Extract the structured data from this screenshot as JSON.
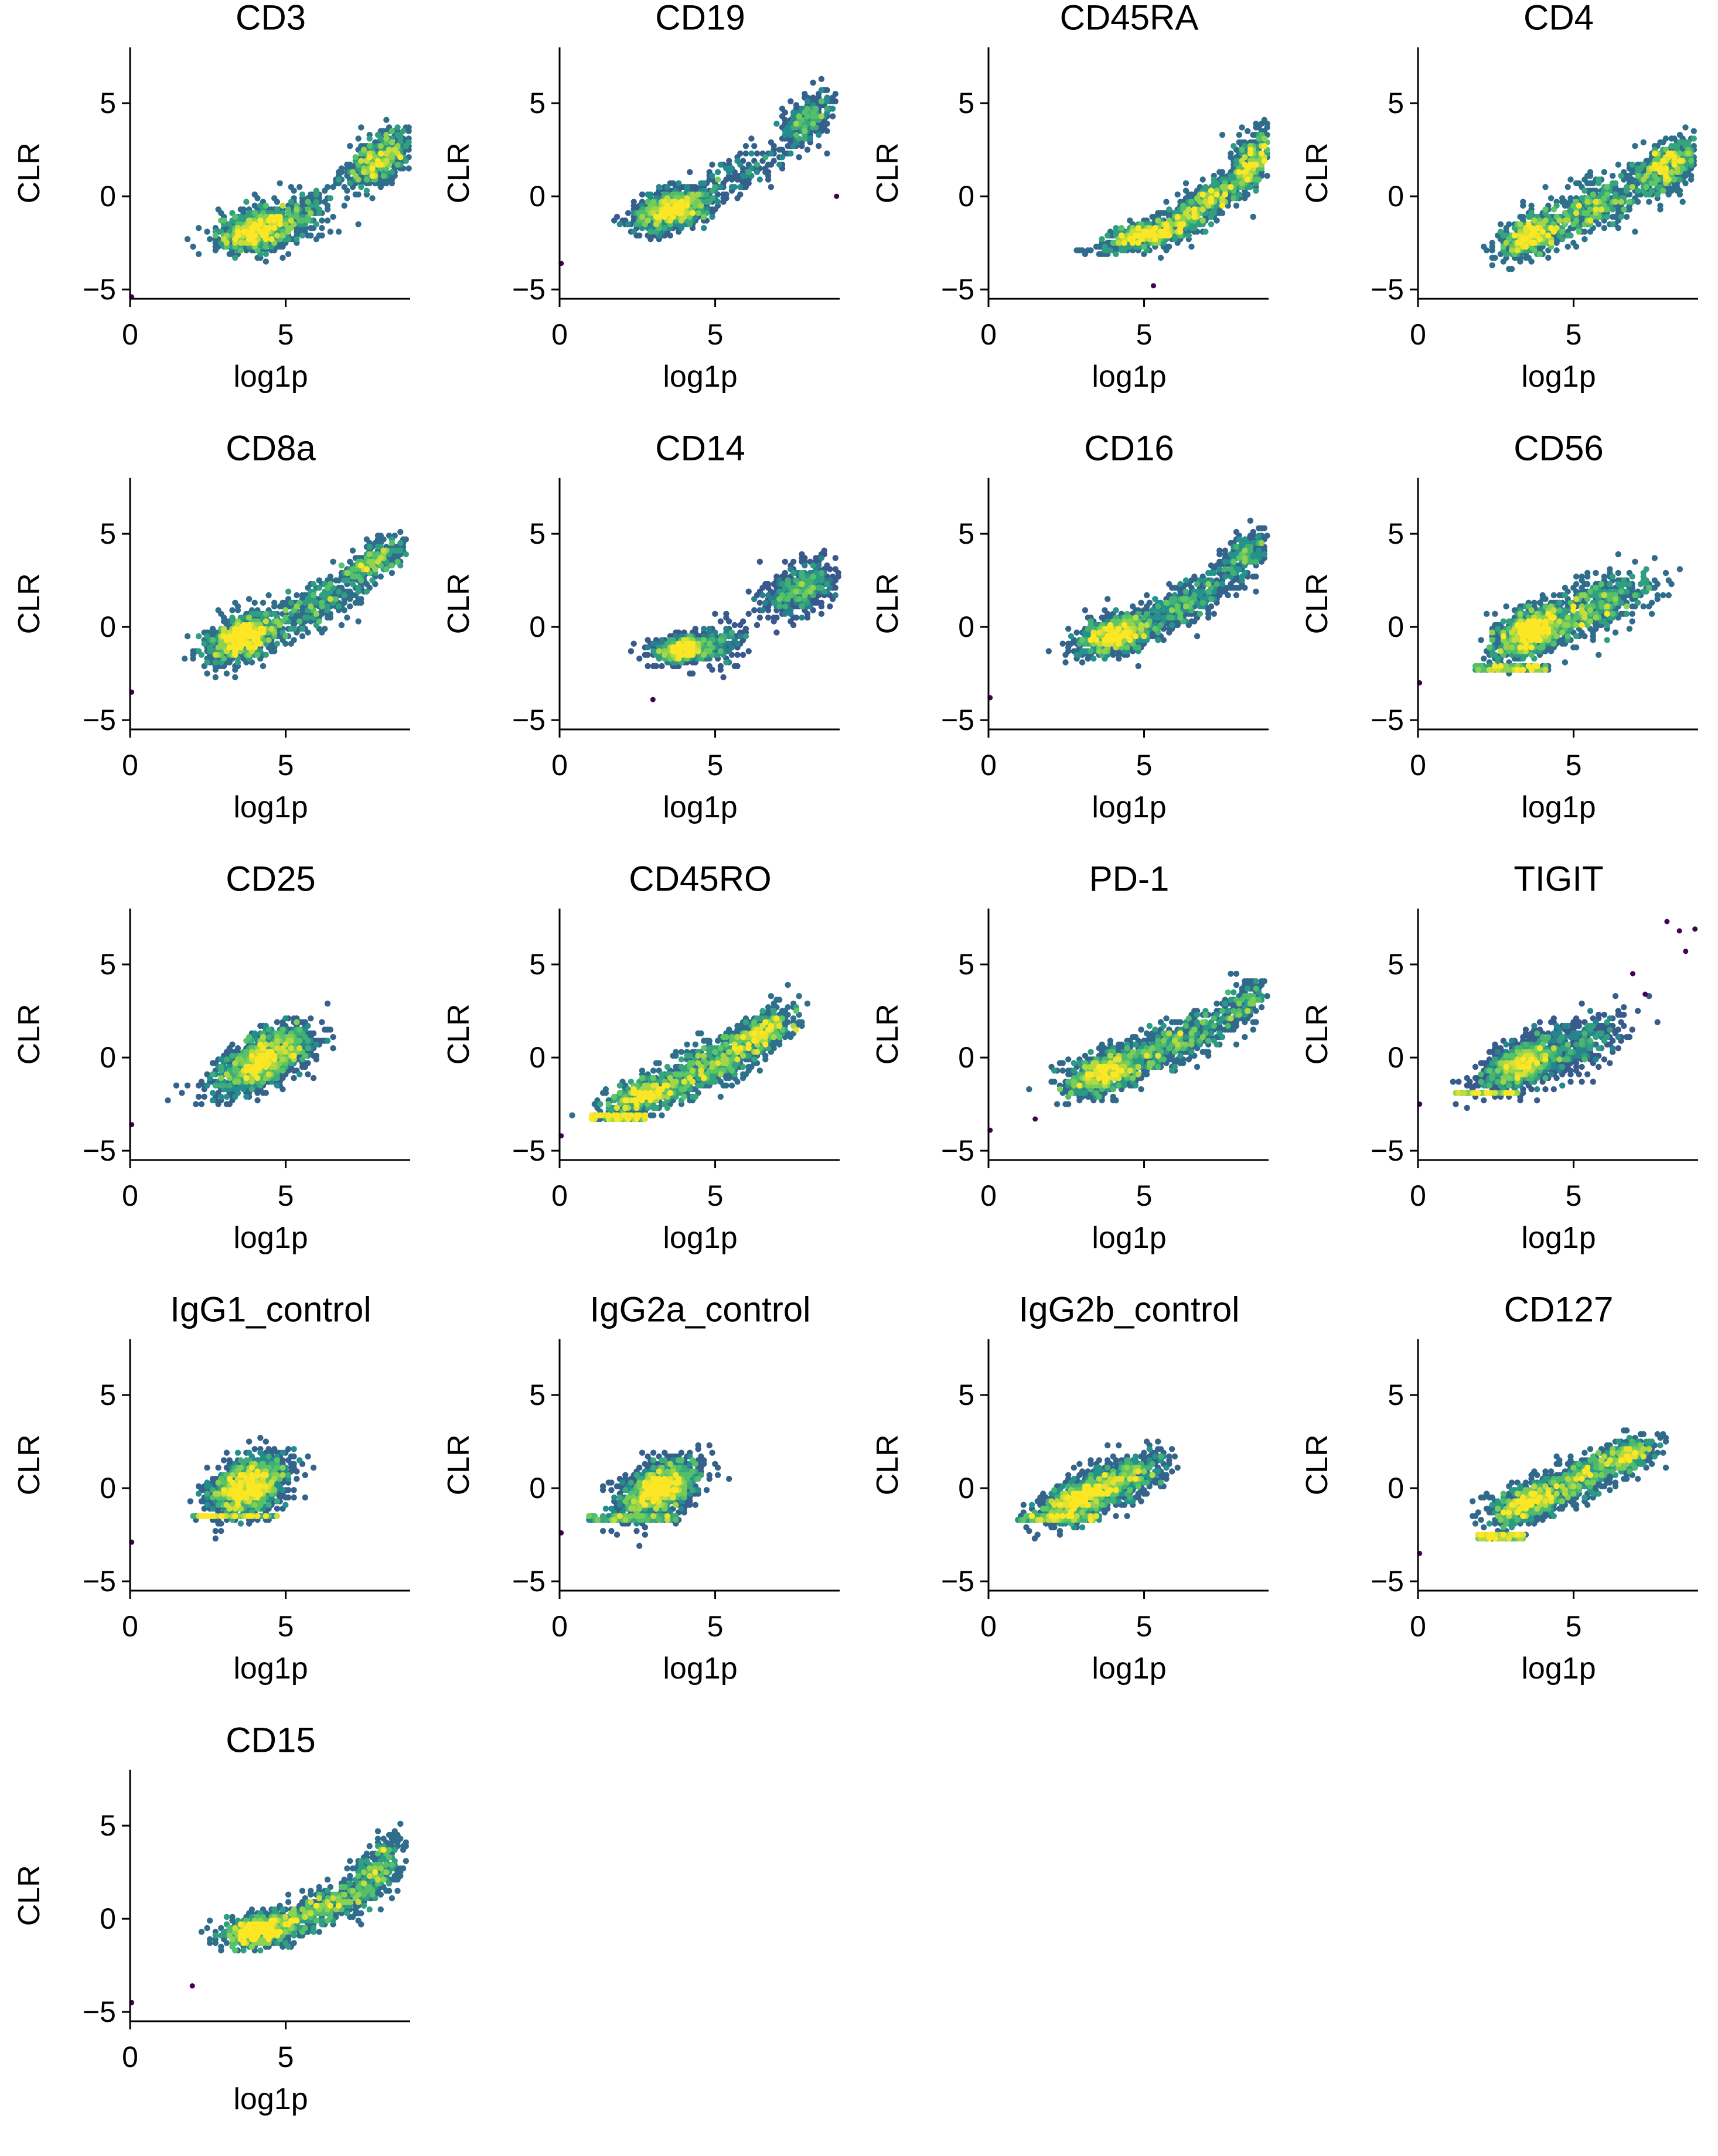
{
  "colors": {
    "colormap": "viridis",
    "low": "#440154",
    "mid_low": "#3b528b",
    "mid": "#21918c",
    "mid_high": "#5ec962",
    "high": "#fde725"
  },
  "chart_data": [
    {
      "type": "scatter",
      "title": "CD3",
      "xlabel": "log1p",
      "ylabel": "CLR",
      "xlim": [
        0,
        9
      ],
      "ylim": [
        -5.5,
        8
      ],
      "xticks": [
        0,
        5
      ],
      "yticks": [
        -5,
        0,
        5
      ],
      "outliers": [
        [
          0.05,
          -5.4
        ]
      ],
      "clusters": [
        {
          "x": 4.1,
          "y": -1.8,
          "sx": 0.65,
          "sy": 0.6,
          "rho": 0.35,
          "weight": 0.55
        },
        {
          "x": 5.6,
          "y": -1.0,
          "sx": 0.5,
          "sy": 0.7,
          "rho": 0.3,
          "weight": 0.1
        },
        {
          "x": 8.0,
          "y": 2.0,
          "sx": 0.55,
          "sy": 0.75,
          "rho": 0.55,
          "weight": 0.35
        }
      ]
    },
    {
      "type": "scatter",
      "title": "CD19",
      "xlabel": "log1p",
      "ylabel": "CLR",
      "xlim": [
        0,
        9
      ],
      "ylim": [
        -5.5,
        8
      ],
      "xticks": [
        0,
        5
      ],
      "yticks": [
        -5,
        0,
        5
      ],
      "outliers": [
        [
          0.05,
          -3.6
        ],
        [
          8.9,
          0.0
        ]
      ],
      "clusters": [
        {
          "x": 3.6,
          "y": -0.7,
          "sx": 0.6,
          "sy": 0.55,
          "rho": 0.4,
          "weight": 0.7
        },
        {
          "x": 5.8,
          "y": 1.2,
          "sx": 0.8,
          "sy": 0.8,
          "rho": 0.7,
          "weight": 0.1
        },
        {
          "x": 7.9,
          "y": 4.0,
          "sx": 0.4,
          "sy": 0.7,
          "rho": 0.5,
          "weight": 0.2
        }
      ]
    },
    {
      "type": "scatter",
      "title": "CD45RA",
      "xlabel": "log1p",
      "ylabel": "CLR",
      "xlim": [
        0,
        9
      ],
      "ylim": [
        -5.5,
        8
      ],
      "xticks": [
        0,
        5
      ],
      "yticks": [
        -5,
        0,
        5
      ],
      "outliers": [
        [
          5.3,
          -4.8
        ]
      ],
      "clusters": [
        {
          "x": 5.2,
          "y": -2.0,
          "sx": 0.75,
          "sy": 0.45,
          "rho": 0.6,
          "weight": 0.4
        },
        {
          "x": 7.0,
          "y": -0.3,
          "sx": 0.8,
          "sy": 0.9,
          "rho": 0.85,
          "weight": 0.35
        },
        {
          "x": 8.5,
          "y": 2.0,
          "sx": 0.35,
          "sy": 0.9,
          "rho": 0.5,
          "weight": 0.25
        }
      ]
    },
    {
      "type": "scatter",
      "title": "CD4",
      "xlabel": "log1p",
      "ylabel": "CLR",
      "xlim": [
        0,
        9
      ],
      "ylim": [
        -5.5,
        8
      ],
      "xticks": [
        0,
        5
      ],
      "yticks": [
        -5,
        0,
        5
      ],
      "outliers": [],
      "clusters": [
        {
          "x": 3.6,
          "y": -2.2,
          "sx": 0.5,
          "sy": 0.55,
          "rho": 0.4,
          "weight": 0.35
        },
        {
          "x": 5.6,
          "y": -0.6,
          "sx": 0.9,
          "sy": 0.9,
          "rho": 0.6,
          "weight": 0.3
        },
        {
          "x": 8.0,
          "y": 1.6,
          "sx": 0.55,
          "sy": 0.75,
          "rho": 0.55,
          "weight": 0.35
        }
      ]
    },
    {
      "type": "scatter",
      "title": "CD8a",
      "xlabel": "log1p",
      "ylabel": "CLR",
      "xlim": [
        0,
        9
      ],
      "ylim": [
        -5.5,
        8
      ],
      "xticks": [
        0,
        5
      ],
      "yticks": [
        -5,
        0,
        5
      ],
      "outliers": [
        [
          0.05,
          -3.5
        ]
      ],
      "clusters": [
        {
          "x": 3.6,
          "y": -0.6,
          "sx": 0.55,
          "sy": 0.65,
          "rho": 0.4,
          "weight": 0.6
        },
        {
          "x": 5.8,
          "y": 1.0,
          "sx": 0.9,
          "sy": 0.9,
          "rho": 0.7,
          "weight": 0.2
        },
        {
          "x": 7.8,
          "y": 3.5,
          "sx": 0.5,
          "sy": 0.6,
          "rho": 0.6,
          "weight": 0.2
        }
      ]
    },
    {
      "type": "scatter",
      "title": "CD14",
      "xlabel": "log1p",
      "ylabel": "CLR",
      "xlim": [
        0,
        9
      ],
      "ylim": [
        -5.5,
        8
      ],
      "xticks": [
        0,
        5
      ],
      "yticks": [
        -5,
        0,
        5
      ],
      "outliers": [
        [
          3.0,
          -3.9
        ]
      ],
      "clusters": [
        {
          "x": 4.0,
          "y": -1.2,
          "sx": 0.45,
          "sy": 0.35,
          "rho": 0.2,
          "weight": 0.55
        },
        {
          "x": 5.3,
          "y": -0.8,
          "sx": 0.4,
          "sy": 0.6,
          "rho": 0.3,
          "weight": 0.1
        },
        {
          "x": 7.7,
          "y": 2.0,
          "sx": 0.6,
          "sy": 0.7,
          "rho": 0.5,
          "weight": 0.35
        }
      ]
    },
    {
      "type": "scatter",
      "title": "CD16",
      "xlabel": "log1p",
      "ylabel": "CLR",
      "xlim": [
        0,
        9
      ],
      "ylim": [
        -5.5,
        8
      ],
      "xticks": [
        0,
        5
      ],
      "yticks": [
        -5,
        0,
        5
      ],
      "outliers": [
        [
          0.05,
          -3.8
        ]
      ],
      "clusters": [
        {
          "x": 4.1,
          "y": -0.4,
          "sx": 0.65,
          "sy": 0.55,
          "rho": 0.4,
          "weight": 0.6
        },
        {
          "x": 6.3,
          "y": 1.2,
          "sx": 0.8,
          "sy": 0.9,
          "rho": 0.75,
          "weight": 0.25
        },
        {
          "x": 8.2,
          "y": 3.8,
          "sx": 0.45,
          "sy": 0.7,
          "rho": 0.5,
          "weight": 0.15
        }
      ]
    },
    {
      "type": "scatter",
      "title": "CD56",
      "xlabel": "log1p",
      "ylabel": "CLR",
      "xlim": [
        0,
        9
      ],
      "ylim": [
        -5.5,
        8
      ],
      "xticks": [
        0,
        5
      ],
      "yticks": [
        -5,
        0,
        5
      ],
      "outliers": [
        [
          0.05,
          -3.0
        ]
      ],
      "clusters": [
        {
          "x": 3.6,
          "y": -0.3,
          "sx": 0.6,
          "sy": 0.7,
          "rho": 0.5,
          "weight": 0.6
        },
        {
          "x": 5.6,
          "y": 1.0,
          "sx": 1.0,
          "sy": 1.0,
          "rho": 0.65,
          "weight": 0.4
        }
      ],
      "floor": {
        "y": -2.2,
        "x0": 1.8,
        "x1": 4.2
      }
    },
    {
      "type": "scatter",
      "title": "CD25",
      "xlabel": "log1p",
      "ylabel": "CLR",
      "xlim": [
        0,
        9
      ],
      "ylim": [
        -5.5,
        8
      ],
      "xticks": [
        0,
        5
      ],
      "yticks": [
        -5,
        0,
        5
      ],
      "outliers": [
        [
          0.05,
          -3.6
        ]
      ],
      "clusters": [
        {
          "x": 4.3,
          "y": -0.1,
          "sx": 0.75,
          "sy": 0.85,
          "rho": 0.6,
          "weight": 1.0
        }
      ]
    },
    {
      "type": "scatter",
      "title": "CD45RO",
      "xlabel": "log1p",
      "ylabel": "CLR",
      "xlim": [
        0,
        9
      ],
      "ylim": [
        -5.5,
        8
      ],
      "xticks": [
        0,
        5
      ],
      "yticks": [
        -5,
        0,
        5
      ],
      "outliers": [
        [
          0.05,
          -4.2
        ]
      ],
      "clusters": [
        {
          "x": 2.8,
          "y": -2.0,
          "sx": 0.7,
          "sy": 0.55,
          "rho": 0.6,
          "weight": 0.35
        },
        {
          "x": 4.7,
          "y": -0.6,
          "sx": 0.8,
          "sy": 0.8,
          "rho": 0.6,
          "weight": 0.3
        },
        {
          "x": 6.4,
          "y": 1.2,
          "sx": 0.6,
          "sy": 0.7,
          "rho": 0.6,
          "weight": 0.35
        }
      ],
      "floor": {
        "y": -3.2,
        "x0": 1.0,
        "x1": 2.8
      }
    },
    {
      "type": "scatter",
      "title": "PD-1",
      "xlabel": "log1p",
      "ylabel": "CLR",
      "xlim": [
        0,
        9
      ],
      "ylim": [
        -5.5,
        8
      ],
      "xticks": [
        0,
        5
      ],
      "yticks": [
        -5,
        0,
        5
      ],
      "outliers": [
        [
          0.05,
          -3.9
        ],
        [
          1.5,
          -3.3
        ]
      ],
      "clusters": [
        {
          "x": 3.7,
          "y": -0.8,
          "sx": 0.65,
          "sy": 0.6,
          "rho": 0.45,
          "weight": 0.55
        },
        {
          "x": 6.0,
          "y": 0.8,
          "sx": 1.1,
          "sy": 1.0,
          "rho": 0.8,
          "weight": 0.35
        },
        {
          "x": 8.2,
          "y": 3.0,
          "sx": 0.4,
          "sy": 0.7,
          "rho": 0.5,
          "weight": 0.1
        }
      ]
    },
    {
      "type": "scatter",
      "title": "TIGIT",
      "xlabel": "log1p",
      "ylabel": "CLR",
      "xlim": [
        0,
        9
      ],
      "ylim": [
        -5.5,
        8
      ],
      "xticks": [
        0,
        5
      ],
      "yticks": [
        -5,
        0,
        5
      ],
      "outliers": [
        [
          0.05,
          -2.5
        ],
        [
          8.0,
          7.3
        ],
        [
          8.4,
          6.8
        ],
        [
          8.6,
          5.7
        ],
        [
          8.9,
          6.9
        ],
        [
          7.3,
          3.4
        ],
        [
          6.9,
          4.5
        ]
      ],
      "clusters": [
        {
          "x": 3.3,
          "y": -0.4,
          "sx": 0.6,
          "sy": 0.65,
          "rho": 0.5,
          "weight": 0.7
        },
        {
          "x": 4.9,
          "y": 0.6,
          "sx": 0.9,
          "sy": 0.9,
          "rho": 0.5,
          "weight": 0.3
        }
      ],
      "floor": {
        "y": -1.9,
        "x0": 1.2,
        "x1": 3.2
      }
    },
    {
      "type": "scatter",
      "title": "IgG1_control",
      "xlabel": "log1p",
      "ylabel": "CLR",
      "xlim": [
        0,
        9
      ],
      "ylim": [
        -5.5,
        8
      ],
      "xticks": [
        0,
        5
      ],
      "yticks": [
        -5,
        0,
        5
      ],
      "outliers": [
        [
          0.05,
          -2.9
        ]
      ],
      "clusters": [
        {
          "x": 3.8,
          "y": 0.1,
          "sx": 0.6,
          "sy": 0.75,
          "rho": 0.35,
          "weight": 1.0
        }
      ],
      "floor": {
        "y": -1.5,
        "x0": 2.0,
        "x1": 4.8
      }
    },
    {
      "type": "scatter",
      "title": "IgG2a_control",
      "xlabel": "log1p",
      "ylabel": "CLR",
      "xlim": [
        0,
        9
      ],
      "ylim": [
        -5.5,
        8
      ],
      "xticks": [
        0,
        5
      ],
      "yticks": [
        -5,
        0,
        5
      ],
      "outliers": [
        [
          0.05,
          -2.4
        ]
      ],
      "clusters": [
        {
          "x": 3.2,
          "y": 0.0,
          "sx": 0.6,
          "sy": 0.75,
          "rho": 0.5,
          "weight": 1.0
        }
      ],
      "floor": {
        "y": -1.6,
        "x0": 0.9,
        "x1": 3.8
      }
    },
    {
      "type": "scatter",
      "title": "IgG2b_control",
      "xlabel": "log1p",
      "ylabel": "CLR",
      "xlim": [
        0,
        9
      ],
      "ylim": [
        -5.5,
        8
      ],
      "xticks": [
        0,
        5
      ],
      "yticks": [
        -5,
        0,
        5
      ],
      "outliers": [],
      "clusters": [
        {
          "x": 3.0,
          "y": -0.5,
          "sx": 0.7,
          "sy": 0.7,
          "rho": 0.65,
          "weight": 0.7
        },
        {
          "x": 4.4,
          "y": 0.5,
          "sx": 0.7,
          "sy": 0.7,
          "rho": 0.5,
          "weight": 0.3
        }
      ],
      "floor": {
        "y": -1.6,
        "x0": 0.9,
        "x1": 3.6
      }
    },
    {
      "type": "scatter",
      "title": "CD127",
      "xlabel": "log1p",
      "ylabel": "CLR",
      "xlim": [
        0,
        9
      ],
      "ylim": [
        -5.5,
        8
      ],
      "xticks": [
        0,
        5
      ],
      "yticks": [
        -5,
        0,
        5
      ],
      "outliers": [
        [
          0.05,
          -3.5
        ]
      ],
      "clusters": [
        {
          "x": 3.4,
          "y": -0.9,
          "sx": 0.55,
          "sy": 0.6,
          "rho": 0.5,
          "weight": 0.4
        },
        {
          "x": 5.0,
          "y": 0.3,
          "sx": 0.8,
          "sy": 0.8,
          "rho": 0.7,
          "weight": 0.35
        },
        {
          "x": 6.7,
          "y": 1.7,
          "sx": 0.45,
          "sy": 0.5,
          "rho": 0.5,
          "weight": 0.25
        }
      ],
      "floor": {
        "y": -2.6,
        "x0": 1.9,
        "x1": 3.4
      }
    },
    {
      "type": "scatter",
      "title": "CD15",
      "xlabel": "log1p",
      "ylabel": "CLR",
      "xlim": [
        0,
        9
      ],
      "ylim": [
        -5.5,
        8
      ],
      "xticks": [
        0,
        5
      ],
      "yticks": [
        -5,
        0,
        5
      ],
      "outliers": [
        [
          0.05,
          -4.5
        ],
        [
          2.0,
          -3.6
        ]
      ],
      "clusters": [
        {
          "x": 4.2,
          "y": -0.6,
          "sx": 0.6,
          "sy": 0.45,
          "rho": 0.3,
          "weight": 0.5
        },
        {
          "x": 6.2,
          "y": 0.6,
          "sx": 0.8,
          "sy": 0.7,
          "rho": 0.7,
          "weight": 0.3
        },
        {
          "x": 7.9,
          "y": 2.6,
          "sx": 0.45,
          "sy": 0.9,
          "rho": 0.5,
          "weight": 0.2
        }
      ]
    }
  ]
}
